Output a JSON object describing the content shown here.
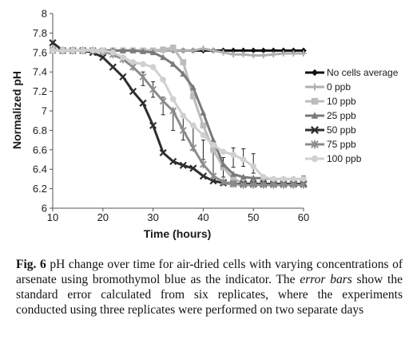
{
  "chart_data": {
    "type": "line",
    "xlabel": "Time (hours)",
    "ylabel": "Normalized pH",
    "xlim": [
      10,
      60
    ],
    "ylim": [
      6,
      8
    ],
    "xticks": [
      "10",
      "20",
      "30",
      "40",
      "50",
      "60"
    ],
    "yticks": [
      "6",
      "6.2",
      "6.4",
      "6.6",
      "6.8",
      "7",
      "7.2",
      "7.4",
      "7.6",
      "7.8",
      "8"
    ],
    "grid": false,
    "legend_position": "right",
    "series": [
      {
        "name": "No cells average",
        "color": "#111111",
        "marker": "diamond",
        "x": [
          10,
          12,
          14,
          16,
          18,
          20,
          22,
          24,
          26,
          28,
          30,
          32,
          34,
          36,
          38,
          40,
          42,
          44,
          46,
          48,
          50,
          52,
          54,
          56,
          58,
          60
        ],
        "y": [
          7.62,
          7.62,
          7.62,
          7.62,
          7.62,
          7.62,
          7.62,
          7.62,
          7.62,
          7.62,
          7.62,
          7.62,
          7.62,
          7.62,
          7.62,
          7.62,
          7.62,
          7.62,
          7.62,
          7.62,
          7.62,
          7.62,
          7.62,
          7.62,
          7.62,
          7.62
        ]
      },
      {
        "name": "0 ppb",
        "color": "#b0b0b0",
        "marker": "plus",
        "x": [
          10,
          12,
          14,
          16,
          18,
          20,
          22,
          24,
          26,
          28,
          30,
          32,
          34,
          36,
          38,
          40,
          42,
          44,
          46,
          48,
          50,
          52,
          54,
          56,
          58,
          60
        ],
        "y": [
          7.62,
          7.62,
          7.62,
          7.62,
          7.62,
          7.62,
          7.62,
          7.62,
          7.62,
          7.62,
          7.62,
          7.62,
          7.62,
          7.62,
          7.62,
          7.64,
          7.62,
          7.6,
          7.58,
          7.58,
          7.57,
          7.57,
          7.58,
          7.59,
          7.59,
          7.59
        ]
      },
      {
        "name": "10 ppb",
        "color": "#bcbcbc",
        "marker": "square",
        "x": [
          10,
          12,
          14,
          16,
          18,
          20,
          22,
          24,
          26,
          28,
          30,
          32,
          34,
          36,
          38,
          40,
          42,
          44,
          46,
          48,
          50,
          52,
          54,
          56,
          58,
          60
        ],
        "y": [
          7.63,
          7.62,
          7.62,
          7.62,
          7.62,
          7.62,
          7.62,
          7.62,
          7.62,
          7.62,
          7.62,
          7.63,
          7.65,
          7.5,
          7.15,
          6.85,
          6.6,
          6.42,
          6.3,
          6.26,
          6.25,
          6.25,
          6.25,
          6.25,
          6.25,
          6.25
        ]
      },
      {
        "name": "25 ppb",
        "color": "#7a7a7a",
        "marker": "triangle",
        "x": [
          10,
          12,
          14,
          16,
          18,
          20,
          22,
          24,
          26,
          28,
          30,
          32,
          34,
          36,
          38,
          40,
          42,
          44,
          46,
          48,
          50,
          52,
          54,
          56,
          58,
          60
        ],
        "y": [
          7.62,
          7.62,
          7.62,
          7.62,
          7.62,
          7.62,
          7.62,
          7.62,
          7.62,
          7.61,
          7.6,
          7.55,
          7.48,
          7.38,
          7.24,
          6.98,
          6.7,
          6.45,
          6.35,
          6.32,
          6.31,
          6.31,
          6.3,
          6.3,
          6.3,
          6.3
        ]
      },
      {
        "name": "50 ppb",
        "color": "#2e2e2e",
        "marker": "x",
        "x": [
          10,
          12,
          14,
          16,
          18,
          20,
          22,
          24,
          26,
          28,
          30,
          32,
          34,
          36,
          38,
          40,
          42,
          44,
          46,
          48,
          50,
          52,
          54,
          56,
          58,
          60
        ],
        "y": [
          7.7,
          7.62,
          7.62,
          7.62,
          7.6,
          7.55,
          7.45,
          7.35,
          7.2,
          7.08,
          6.85,
          6.57,
          6.48,
          6.44,
          6.41,
          6.33,
          6.28,
          6.26,
          6.25,
          6.25,
          6.25,
          6.25,
          6.25,
          6.25,
          6.25,
          6.25
        ]
      },
      {
        "name": "75 ppb",
        "color": "#8c8c8c",
        "marker": "star",
        "x": [
          10,
          12,
          14,
          16,
          18,
          20,
          22,
          24,
          26,
          28,
          30,
          32,
          34,
          36,
          38,
          40,
          42,
          44,
          46,
          48,
          50,
          52,
          54,
          56,
          58,
          60
        ],
        "y": [
          7.62,
          7.62,
          7.62,
          7.62,
          7.62,
          7.61,
          7.58,
          7.53,
          7.45,
          7.35,
          7.22,
          7.1,
          7.0,
          6.8,
          6.62,
          6.45,
          6.33,
          6.27,
          6.25,
          6.24,
          6.24,
          6.24,
          6.24,
          6.24,
          6.24,
          6.24
        ]
      },
      {
        "name": "100 ppb",
        "color": "#d0d0d0",
        "marker": "circle",
        "x": [
          10,
          12,
          14,
          16,
          18,
          20,
          22,
          24,
          26,
          28,
          30,
          32,
          34,
          36,
          38,
          40,
          42,
          44,
          46,
          48,
          50,
          52,
          54,
          56,
          58,
          60
        ],
        "y": [
          7.62,
          7.62,
          7.62,
          7.62,
          7.62,
          7.62,
          7.6,
          7.55,
          7.5,
          7.48,
          7.45,
          7.32,
          7.12,
          6.95,
          6.85,
          6.75,
          6.65,
          6.58,
          6.55,
          6.5,
          6.43,
          6.32,
          6.3,
          6.3,
          6.3,
          6.3
        ]
      }
    ],
    "error_bars": [
      {
        "x": 28,
        "y": 7.33,
        "err": 0.07
      },
      {
        "x": 30,
        "y": 7.22,
        "err": 0.08
      },
      {
        "x": 32,
        "y": 7.05,
        "err": 0.09
      },
      {
        "x": 34,
        "y": 6.9,
        "err": 0.1
      },
      {
        "x": 36,
        "y": 6.82,
        "err": 0.12
      },
      {
        "x": 38,
        "y": 6.72,
        "err": 0.12
      },
      {
        "x": 40,
        "y": 6.6,
        "err": 0.1
      },
      {
        "x": 42,
        "y": 6.47,
        "err": 0.12
      },
      {
        "x": 44,
        "y": 6.42,
        "err": 0.1
      },
      {
        "x": 46,
        "y": 6.52,
        "err": 0.1
      },
      {
        "x": 48,
        "y": 6.52,
        "err": 0.09
      },
      {
        "x": 50,
        "y": 6.46,
        "err": 0.1
      },
      {
        "x": 60,
        "y": 6.3,
        "err": 0.03
      }
    ]
  },
  "caption": {
    "label": "Fig. 6",
    "text_before_italic": " pH change over time for air-dried cells with varying concentrations of arsenate using bromothymol blue as the indicator. The ",
    "italic": "error bars",
    "text_after_italic": " show the standard error calculated from six replicates, where the experiments conducted using three replicates were performed on two separate days"
  }
}
